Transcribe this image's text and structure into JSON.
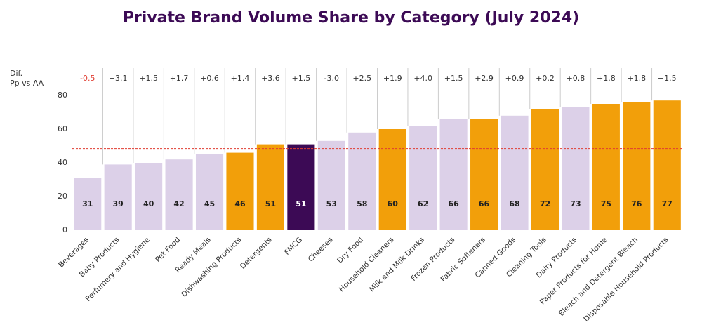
{
  "chart_data": {
    "type": "bar",
    "title": "Private Brand Volume Share by Category (July 2024)",
    "categories": [
      "Beverages",
      "Baby Products",
      "Perfumery and Hygiene",
      "Pet Food",
      "Ready Meals",
      "Dishwashing Products",
      "Detergents",
      "FMCG",
      "Cheeses",
      "Dry Food",
      "Household Cleaners",
      "Milk and Milk Drinks",
      "Frozen Products",
      "Fabric Softeners",
      "Canned Goods",
      "Cleaning Tools",
      "Dairy Products",
      "Paper Products for Home",
      "Bleach and Detergent Bleach",
      "Disposable Household Products"
    ],
    "values": [
      31,
      39,
      40,
      42,
      45,
      46,
      51,
      51,
      53,
      58,
      60,
      62,
      66,
      66,
      68,
      72,
      73,
      75,
      76,
      77
    ],
    "colors": [
      "#dcd0e8",
      "#dcd0e8",
      "#dcd0e8",
      "#dcd0e8",
      "#dcd0e8",
      "#f29f0a",
      "#f29f0a",
      "#3c0a55",
      "#dcd0e8",
      "#dcd0e8",
      "#f29f0a",
      "#dcd0e8",
      "#dcd0e8",
      "#f29f0a",
      "#dcd0e8",
      "#f29f0a",
      "#dcd0e8",
      "#f29f0a",
      "#f29f0a",
      "#f29f0a"
    ],
    "ylim": [
      0,
      80
    ],
    "yticks": [
      0,
      20,
      40,
      60,
      80
    ],
    "reference_line": {
      "value": 48.5,
      "color": "#e03c31"
    },
    "difference_title": [
      "Dif.",
      "Pp vs AA"
    ],
    "differences": {
      "values": [
        -0.5,
        3.1,
        1.5,
        1.7,
        0.6,
        1.4,
        3.6,
        1.5,
        -3.0,
        2.5,
        1.9,
        4.0,
        1.5,
        2.9,
        0.9,
        0.2,
        0.8,
        1.8,
        1.8,
        1.5
      ],
      "value_labels": [
        "-0.5",
        "+3.1",
        "+1.5",
        "+1.7",
        "+0.6",
        "+1.4",
        "+3.6",
        "+1.5",
        "-3.0",
        "+2.5",
        "+1.9",
        "+4.0",
        "+1.5",
        "+2.9",
        "+0.9",
        "+0.2",
        "+0.8",
        "+1.8",
        "+1.8",
        "+1.5"
      ],
      "colors": [
        "#e03c31",
        "#333333",
        "#333333",
        "#333333",
        "#333333",
        "#333333",
        "#333333",
        "#333333",
        "#333333",
        "#333333",
        "#333333",
        "#333333",
        "#333333",
        "#333333",
        "#333333",
        "#333333",
        "#333333",
        "#333333",
        "#333333",
        "#333333"
      ]
    }
  }
}
